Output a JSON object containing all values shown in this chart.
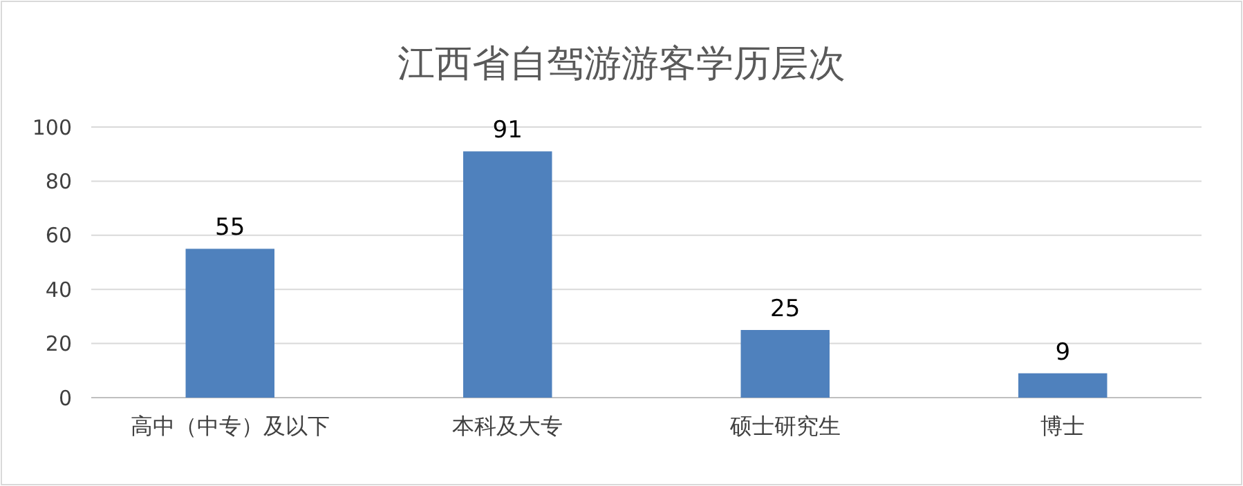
{
  "chart_data": {
    "type": "bar",
    "title": "江西省自驾游游客学历层次",
    "categories": [
      "高中（中专）及以下",
      "本科及大专",
      "硕士研究生",
      "博士"
    ],
    "values": [
      55,
      91,
      25,
      9
    ],
    "color": "#4f81bd",
    "ylim": [
      0,
      100
    ],
    "yticks": [
      0,
      20,
      40,
      60,
      80,
      100
    ],
    "grid": "y",
    "data_labels": true
  }
}
